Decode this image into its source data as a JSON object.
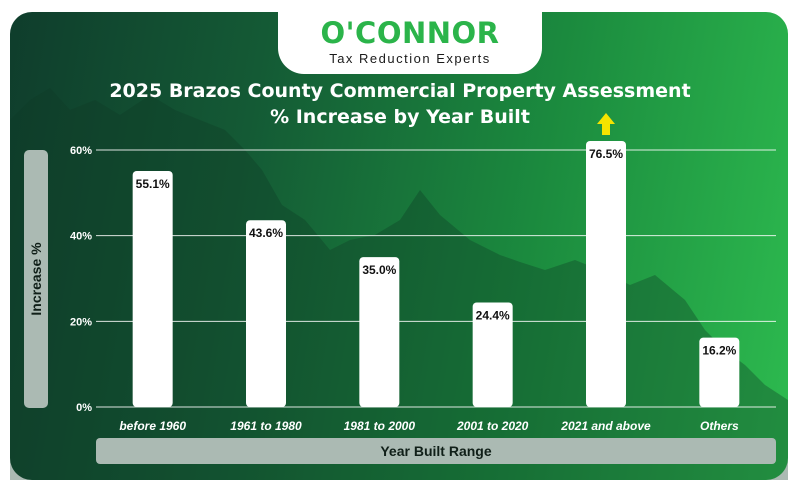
{
  "brand": {
    "name": "O'CONNOR",
    "tagline": "Tax Reduction Experts"
  },
  "chart_data": {
    "type": "bar",
    "title": "2025 Brazos County Commercial Property Assessment",
    "subtitle": "% Increase by Year Built",
    "xlabel": "Year Built Range",
    "ylabel": "Increase %",
    "categories": [
      "before 1960",
      "1961 to 1980",
      "1981 to 2000",
      "2001 to 2020",
      "2021 and above",
      "Others"
    ],
    "values": [
      55.1,
      43.6,
      35.0,
      24.4,
      76.5,
      16.2
    ],
    "data_labels": [
      "55.1%",
      "43.6%",
      "35.0%",
      "24.4%",
      "76.5%",
      "16.2%"
    ],
    "ylim": [
      0,
      60
    ],
    "yticks": [
      0,
      20,
      40,
      60
    ],
    "ytick_labels": [
      "0%",
      "20%",
      "40%",
      "60%"
    ],
    "overflow_marker": "arrow-up on 2021 and above",
    "grid": true,
    "colors": {
      "bar": "#ffffff",
      "arrow": "#f5e400",
      "text": "#111111"
    }
  }
}
